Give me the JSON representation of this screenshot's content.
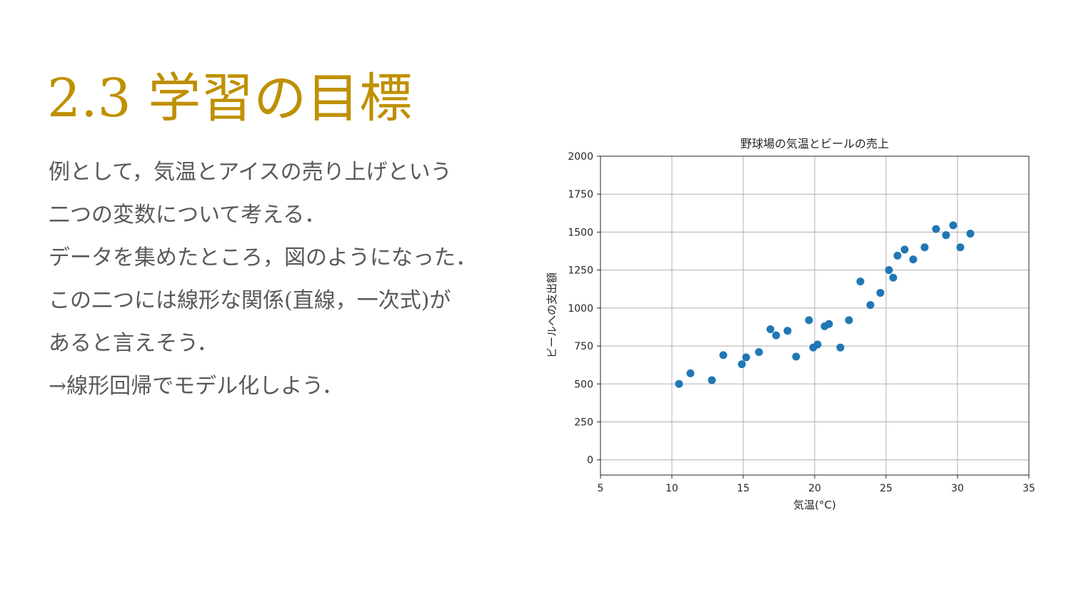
{
  "slide": {
    "title": "2.3 学習の目標",
    "body_lines": [
      "例として，気温とアイスの売り上げという",
      "二つの変数について考える．",
      "データを集めたところ，図のようになった．",
      "この二つには線形な関係(直線，一次式)が",
      "あると言えそう．",
      "→線形回帰でモデル化しよう．"
    ]
  },
  "colors": {
    "title": "#bf9000",
    "body_text": "#595959",
    "points": "#1f77b4",
    "grid": "#b0b0b0"
  },
  "chart_data": {
    "type": "scatter",
    "title": "野球場の気温とビールの売上",
    "xlabel": "気温(°C)",
    "ylabel": "ビールへの支出額",
    "xlim": [
      5,
      35
    ],
    "ylim": [
      -100,
      2000
    ],
    "xticks": [
      5,
      10,
      15,
      20,
      25,
      30,
      35
    ],
    "yticks": [
      0,
      250,
      500,
      750,
      1000,
      1250,
      1500,
      1750,
      2000
    ],
    "grid": true,
    "legend": "none",
    "series": [
      {
        "x": [
          10.5,
          11.3,
          12.8,
          13.6,
          14.9,
          15.2,
          16.1,
          16.9,
          17.3,
          18.1,
          18.7,
          19.6,
          19.9,
          20.2,
          20.7,
          21.0,
          21.8,
          22.4,
          23.2,
          23.9,
          24.6,
          25.2,
          25.5,
          25.8,
          26.3,
          26.9,
          27.7,
          28.5,
          29.2,
          29.7,
          30.2,
          30.9
        ],
        "y": [
          500,
          570,
          525,
          690,
          630,
          675,
          710,
          860,
          820,
          850,
          680,
          920,
          740,
          760,
          880,
          895,
          740,
          920,
          1175,
          1020,
          1100,
          1250,
          1200,
          1345,
          1385,
          1320,
          1400,
          1520,
          1480,
          1545,
          1400,
          1490
        ]
      }
    ]
  }
}
